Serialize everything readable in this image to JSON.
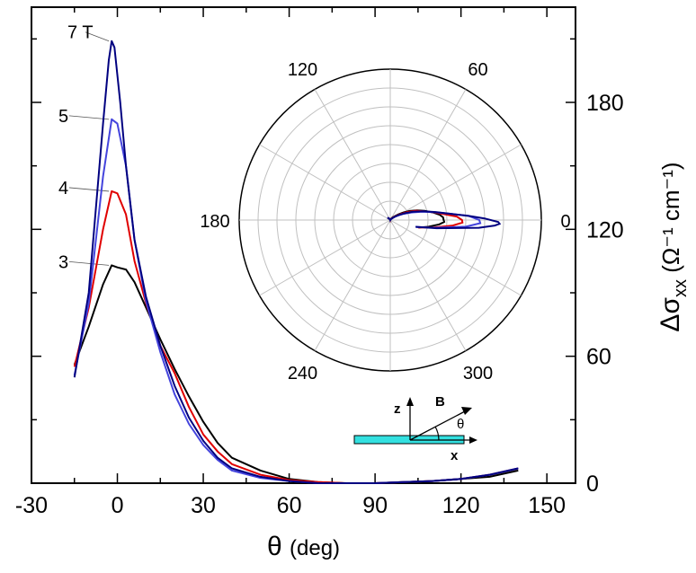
{
  "chart_data": [
    {
      "type": "line",
      "xlabel_symbol": "θ",
      "xlabel_unit": "(deg)",
      "ylabel_main": "Δσ",
      "ylabel_sub": "xx",
      "ylabel_unit": "(Ω⁻¹ cm⁻¹)",
      "xlim": [
        -30,
        160
      ],
      "ylim": [
        0,
        225
      ],
      "x_ticks": [
        -30,
        0,
        30,
        60,
        90,
        120,
        150
      ],
      "x_tick_labels": [
        "-30",
        "0",
        "30",
        "60",
        "90",
        "120",
        "150"
      ],
      "y_ticks": [
        0,
        60,
        120,
        180
      ],
      "y_tick_labels": [
        "0",
        "60",
        "120",
        "180"
      ],
      "y_tick_side": "right",
      "grid": false,
      "series": [
        {
          "name": "3",
          "color": "#000000",
          "x": [
            -15,
            -10,
            -5,
            -2,
            0,
            3,
            6,
            10,
            15,
            20,
            25,
            30,
            35,
            40,
            50,
            60,
            70,
            80,
            90,
            100,
            110,
            120,
            130,
            140
          ],
          "y": [
            56,
            74,
            94,
            103,
            102,
            101,
            95,
            83,
            68,
            54,
            41,
            29,
            19,
            12,
            6,
            2,
            0.5,
            0,
            0,
            0.5,
            1,
            2,
            3,
            6
          ]
        },
        {
          "name": "4",
          "color": "#e00000",
          "x": [
            -15,
            -10,
            -5,
            -2,
            0,
            3,
            6,
            10,
            15,
            20,
            25,
            30,
            35,
            40,
            50,
            60,
            70,
            80,
            90,
            100,
            110,
            120,
            130,
            140
          ],
          "y": [
            55,
            83,
            120,
            138,
            137,
            127,
            105,
            85,
            65,
            52,
            36,
            23,
            15,
            9,
            4,
            1.5,
            0.5,
            0,
            0,
            0.5,
            1,
            2,
            4,
            7
          ]
        },
        {
          "name": "5",
          "color": "#4444dd",
          "x": [
            -15,
            -10,
            -5,
            -2,
            0,
            3,
            6,
            10,
            15,
            20,
            25,
            30,
            35,
            40,
            50,
            60,
            70,
            80,
            90,
            100,
            110,
            120,
            130,
            140
          ],
          "y": [
            51,
            85,
            145,
            172,
            170,
            150,
            115,
            86,
            62,
            42,
            28,
            18,
            11,
            6,
            2.5,
            1,
            0,
            0,
            0,
            0.5,
            1,
            2,
            4,
            7
          ]
        },
        {
          "name": "7 T",
          "color": "#000080",
          "x": [
            -15,
            -10,
            -5,
            -3,
            -2,
            -1,
            1,
            3,
            6,
            10,
            15,
            20,
            25,
            30,
            35,
            40,
            50,
            60,
            70,
            80,
            90,
            100,
            110,
            120,
            130,
            140
          ],
          "y": [
            50,
            90,
            170,
            200,
            209,
            206,
            180,
            150,
            115,
            88,
            65,
            46,
            31,
            20,
            12,
            7,
            3,
            1,
            0,
            0,
            0,
            0.5,
            1,
            2,
            4,
            7
          ]
        }
      ]
    },
    {
      "type": "polar",
      "angle_labels": [
        "0",
        "60",
        "120",
        "180",
        "240",
        "300"
      ],
      "angle_label_positions_deg": [
        0,
        60,
        120,
        180,
        240,
        300
      ],
      "angular_grid_step_deg": 30,
      "radial_rings": 8,
      "grid": true
    }
  ],
  "schematic": {
    "field_label": "B",
    "angle_label": "θ",
    "z_label": "z",
    "x_label": "x",
    "sample_color": "#33e0e0"
  }
}
